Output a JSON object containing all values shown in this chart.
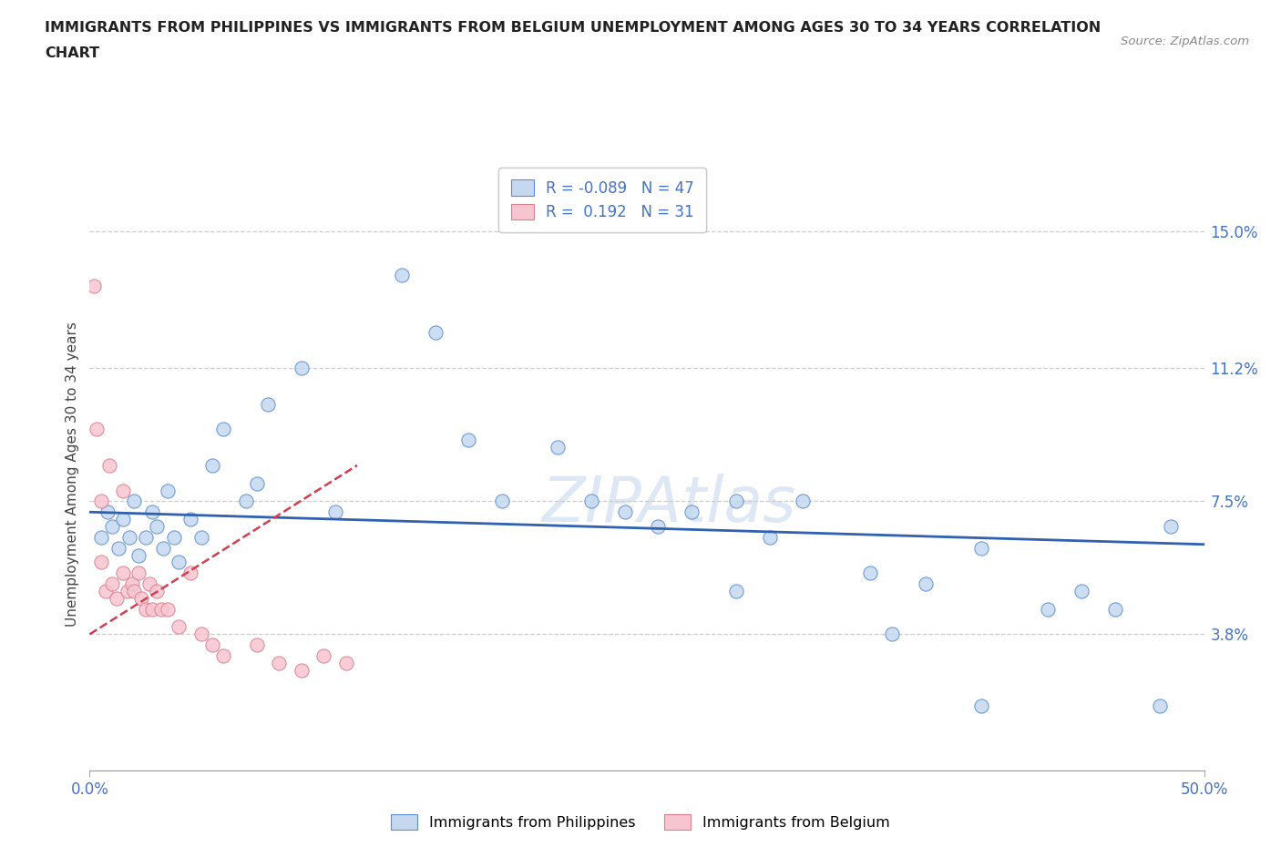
{
  "title_line1": "IMMIGRANTS FROM PHILIPPINES VS IMMIGRANTS FROM BELGIUM UNEMPLOYMENT AMONG AGES 30 TO 34 YEARS CORRELATION",
  "title_line2": "CHART",
  "source": "Source: ZipAtlas.com",
  "ylabel": "Unemployment Among Ages 30 to 34 years",
  "xlim": [
    0.0,
    50.0
  ],
  "ylim": [
    0.0,
    16.5
  ],
  "ytick_values": [
    3.8,
    7.5,
    11.2,
    15.0
  ],
  "r_philippines": -0.089,
  "n_philippines": 47,
  "r_belgium": 0.192,
  "n_belgium": 31,
  "color_philippines_fill": "#c5d8f0",
  "color_philippines_edge": "#5b8fce",
  "color_belgium_fill": "#f7c5d0",
  "color_belgium_edge": "#d88090",
  "trendline_philippines_color": "#3060b0",
  "trendline_belgium_color": "#d04050",
  "axis_label_color": "#4472c4",
  "watermark_text": "ZIPAtlas",
  "legend_label_philippines": "Immigrants from Philippines",
  "legend_label_belgium": "Immigrants from Belgium",
  "philippines_x": [
    0.5,
    0.8,
    1.0,
    1.3,
    1.5,
    1.8,
    2.0,
    2.2,
    2.5,
    2.8,
    3.0,
    3.3,
    3.5,
    3.8,
    4.0,
    4.5,
    5.0,
    5.5,
    6.0,
    7.0,
    7.5,
    8.0,
    9.5,
    11.0,
    14.0,
    15.5,
    17.0,
    18.5,
    21.0,
    22.5,
    24.0,
    25.5,
    27.0,
    29.0,
    30.5,
    32.0,
    35.0,
    37.5,
    40.0,
    43.0,
    44.5,
    46.0,
    48.5,
    29.0,
    36.0,
    40.0,
    48.0
  ],
  "philippines_y": [
    6.5,
    7.2,
    6.8,
    6.2,
    7.0,
    6.5,
    7.5,
    6.0,
    6.5,
    7.2,
    6.8,
    6.2,
    7.8,
    6.5,
    5.8,
    7.0,
    6.5,
    8.5,
    9.5,
    7.5,
    8.0,
    10.2,
    11.2,
    7.2,
    13.8,
    12.2,
    9.2,
    7.5,
    9.0,
    7.5,
    7.2,
    6.8,
    7.2,
    7.5,
    6.5,
    7.5,
    5.5,
    5.2,
    6.2,
    4.5,
    5.0,
    4.5,
    6.8,
    5.0,
    3.8,
    1.8,
    1.8
  ],
  "belgium_x": [
    0.2,
    0.3,
    0.5,
    0.7,
    0.9,
    1.0,
    1.2,
    1.5,
    1.7,
    1.9,
    2.0,
    2.2,
    2.3,
    2.5,
    2.7,
    2.8,
    3.0,
    3.2,
    3.5,
    4.0,
    4.5,
    5.0,
    5.5,
    6.0,
    7.5,
    8.5,
    9.5,
    10.5,
    11.5,
    0.5,
    1.5
  ],
  "belgium_y": [
    13.5,
    9.5,
    5.8,
    5.0,
    8.5,
    5.2,
    4.8,
    5.5,
    5.0,
    5.2,
    5.0,
    5.5,
    4.8,
    4.5,
    5.2,
    4.5,
    5.0,
    4.5,
    4.5,
    4.0,
    5.5,
    3.8,
    3.5,
    3.2,
    3.5,
    3.0,
    2.8,
    3.2,
    3.0,
    7.5,
    7.8
  ],
  "trendline_ph_x0": 0.0,
  "trendline_ph_y0": 7.2,
  "trendline_ph_x1": 50.0,
  "trendline_ph_y1": 6.3,
  "trendline_be_x0": 0.0,
  "trendline_be_y0": 3.8,
  "trendline_be_x1": 12.0,
  "trendline_be_y1": 8.5
}
